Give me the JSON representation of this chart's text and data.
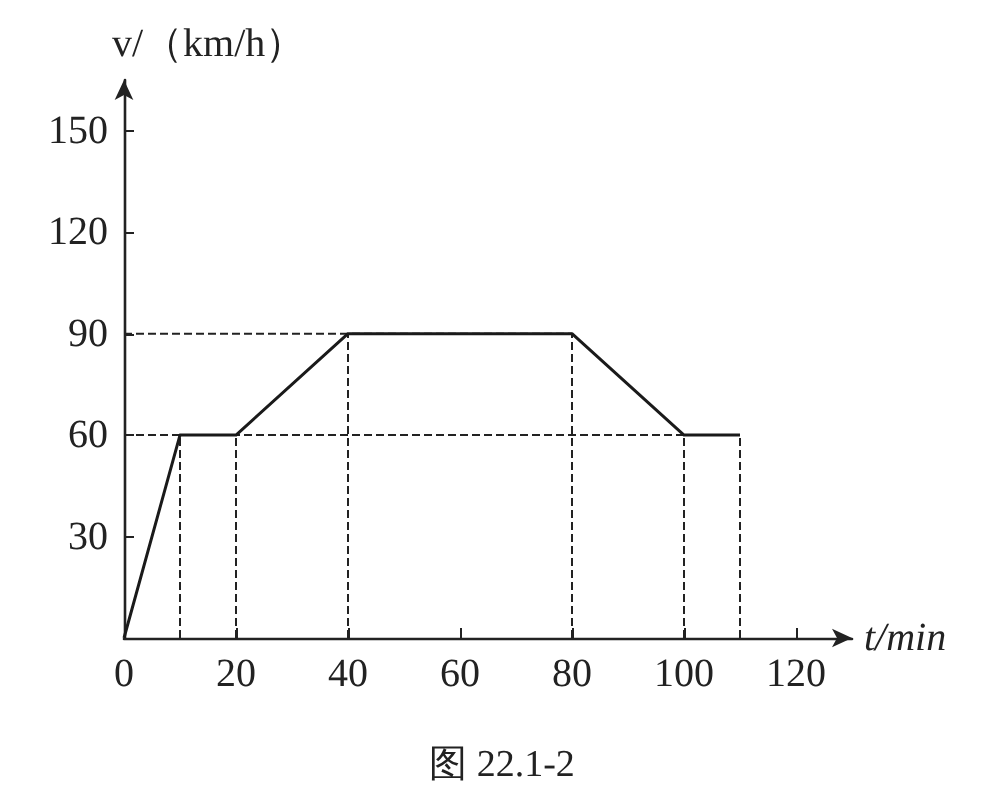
{
  "chart_data": {
    "type": "line",
    "xlabel": "t/min",
    "ylabel": "v/（km/h）",
    "x": [
      0,
      10,
      20,
      40,
      80,
      100,
      110
    ],
    "series": [
      {
        "color": "#1a1a1a",
        "values": [
          0,
          60,
          60,
          90,
          90,
          60,
          60
        ]
      }
    ],
    "xlim": [
      0,
      130
    ],
    "xticks": [
      0,
      20,
      40,
      60,
      80,
      100,
      120
    ],
    "ylim": [
      0,
      165
    ],
    "yticks": [
      30,
      60,
      90,
      120,
      150
    ],
    "ref_lines": [
      {
        "axis": "x",
        "value": 10,
        "line_style": "dashed"
      },
      {
        "axis": "x",
        "value": 20,
        "line_style": "dashed"
      },
      {
        "axis": "x",
        "value": 40,
        "line_style": "dashed"
      },
      {
        "axis": "x",
        "value": 80,
        "line_style": "dashed"
      },
      {
        "axis": "x",
        "value": 100,
        "line_style": "dashed"
      },
      {
        "axis": "x",
        "value": 110,
        "line_style": "dashed"
      },
      {
        "axis": "y",
        "value": 90,
        "line_style": "dashed"
      },
      {
        "axis": "y",
        "value": 60,
        "line_style": "dashed"
      }
    ],
    "annotations": [
      "图 22.1-2"
    ],
    "grid": false,
    "marker": "none",
    "line_style": "solid"
  }
}
